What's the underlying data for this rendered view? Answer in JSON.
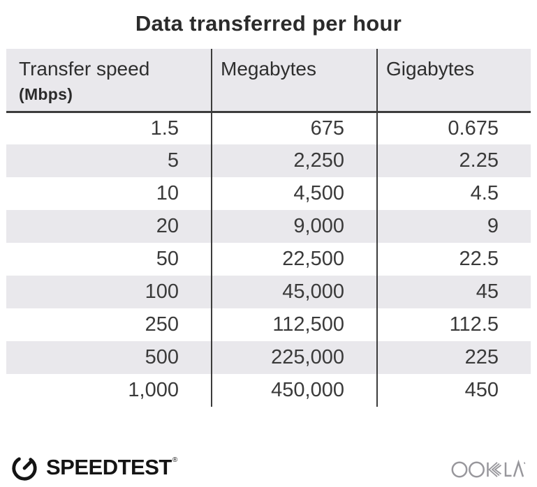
{
  "title": "Data transferred per hour",
  "table": {
    "columns": [
      {
        "label": "Transfer speed",
        "sublabel": "(Mbps)"
      },
      {
        "label": "Megabytes"
      },
      {
        "label": "Gigabytes"
      }
    ],
    "rows": [
      [
        "1.5",
        "675",
        "0.675"
      ],
      [
        "5",
        "2,250",
        "2.25"
      ],
      [
        "10",
        "4,500",
        "4.5"
      ],
      [
        "20",
        "9,000",
        "9"
      ],
      [
        "50",
        "22,500",
        "22.5"
      ],
      [
        "100",
        "45,000",
        "45"
      ],
      [
        "250",
        "112,500",
        "112.5"
      ],
      [
        "500",
        "225,000",
        "225"
      ],
      [
        "1,000",
        "450,000",
        "450"
      ]
    ]
  },
  "footer": {
    "speedtest_label": "SPEEDTEST",
    "speedtest_trademark": "®",
    "ookla_label": "OOKLA"
  },
  "colors": {
    "stripe": "#e9e8ec",
    "line": "#3c3c3c",
    "title_text": "#2b2b2b",
    "number_text": "#3a3a3a",
    "speedtest_black": "#141414",
    "ookla_gray": "#98979c"
  },
  "chart_data": {
    "type": "table",
    "title": "Data transferred per hour",
    "columns": [
      "Transfer speed (Mbps)",
      "Megabytes",
      "Gigabytes"
    ],
    "rows": [
      [
        1.5,
        675,
        0.675
      ],
      [
        5,
        2250,
        2.25
      ],
      [
        10,
        4500,
        4.5
      ],
      [
        20,
        9000,
        9
      ],
      [
        50,
        22500,
        22.5
      ],
      [
        100,
        45000,
        45
      ],
      [
        250,
        112500,
        112.5
      ],
      [
        500,
        225000,
        225
      ],
      [
        1000,
        450000,
        450
      ]
    ],
    "layout": {
      "striped_rows": true,
      "column_dividers": true,
      "header_background": "#e9e8ec"
    }
  }
}
